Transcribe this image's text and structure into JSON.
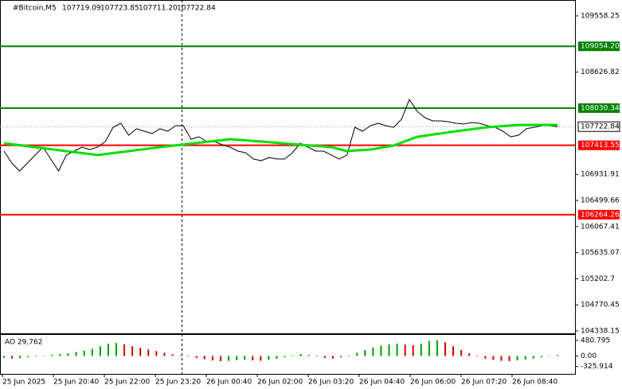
{
  "chart_data": [
    {
      "type": "line",
      "title": "#Bitcoin,M5",
      "ohlc": [
        "107719.09",
        "107723.85",
        "107711.20",
        "107722.84"
      ],
      "series": [
        {
          "color": "#000000",
          "width": 1,
          "values": [
            107317,
            107120,
            106988,
            107120,
            107252,
            107383,
            107186,
            106988,
            107252,
            107317,
            107383,
            107344,
            107383,
            107476,
            107713,
            107779,
            107581,
            107687,
            107647,
            107608,
            107687,
            107647,
            107739,
            107739,
            107515,
            107555,
            107476,
            107476,
            107423,
            107383,
            107317,
            107291,
            107186,
            107159,
            107212,
            107186,
            107186,
            107291,
            107449,
            107383,
            107317,
            107317,
            107252,
            107186,
            107252,
            107713,
            107647,
            107739,
            107779,
            107739,
            107713,
            107845,
            108174,
            107977,
            107871,
            107818,
            107818,
            107805,
            107779,
            107766,
            107792,
            107779,
            107739,
            107713,
            107647,
            107555,
            107581,
            107687,
            107713,
            107739,
            107739,
            107722.84
          ]
        },
        {
          "color": "#00e000",
          "width": 3,
          "values": [
            107449,
            107433,
            107416,
            107400,
            107383,
            107367,
            107350,
            107334,
            107317,
            107301,
            107285,
            107268,
            107252,
            107268,
            107285,
            107301,
            107317,
            107334,
            107350,
            107367,
            107383,
            107398,
            107412,
            107427,
            107442,
            107456,
            107471,
            107486,
            107500,
            107515,
            107505,
            107496,
            107486,
            107476,
            107465,
            107455,
            107444,
            107434,
            107423,
            107413,
            107403,
            107393,
            107383,
            107350,
            107317,
            107326,
            107335,
            107344,
            107366,
            107388,
            107410,
            107458,
            107507,
            107555,
            107573,
            107592,
            107610,
            107629,
            107647,
            107664,
            107680,
            107697,
            107713,
            107723,
            107732,
            107742,
            107752,
            107752,
            107752,
            107752,
            107752,
            107752
          ]
        }
      ],
      "ylim": [
        104312,
        109795
      ],
      "yticks": [
        109558.25,
        108626.82,
        106931.91,
        106499.66,
        106067.41,
        105635.07,
        105202.7,
        104770.45,
        104338.15
      ],
      "levels": [
        {
          "value": 109054.2,
          "label": "109054.20",
          "color": "#008000"
        },
        {
          "value": 108030.34,
          "label": "108030.34",
          "color": "#008000"
        },
        {
          "value": 107413.55,
          "label": "107413.55",
          "color": "#ff0000"
        },
        {
          "value": 106264.26,
          "label": "106264.26",
          "color": "#ff0000"
        }
      ],
      "current_price": 107722.84,
      "time_labels": [
        "25 Jun 2025",
        "25 Jun 20:40",
        "25 Jun 22:00",
        "25 Jun 23:20",
        "26 Jun 00:40",
        "26 Jun 02:00",
        "26 Jun 03:20",
        "26 Jun 04:40",
        "26 Jun 06:00",
        "26 Jun 07:20",
        "26 Jun 08:40"
      ]
    },
    {
      "type": "bar",
      "title": "AO 29,762",
      "up_color": "#00a000",
      "down_color": "#d00000",
      "values": [
        -60,
        -80,
        -70,
        -40,
        -20,
        10,
        40,
        60,
        80,
        120,
        160,
        220,
        300,
        380,
        400,
        360,
        300,
        250,
        200,
        150,
        100,
        50,
        20,
        -20,
        -60,
        -100,
        -140,
        -160,
        -150,
        -130,
        -120,
        -140,
        -150,
        -120,
        -90,
        -40,
        20,
        60,
        30,
        -20,
        -60,
        -80,
        -40,
        20,
        100,
        180,
        260,
        320,
        360,
        380,
        350,
        330,
        380,
        460,
        480,
        420,
        300,
        180,
        80,
        -20,
        -80,
        -120,
        -150,
        -160,
        -140,
        -110,
        -80,
        -40,
        10,
        30
      ],
      "ylim": [
        -553,
        649
      ],
      "yticks": [
        480.795,
        {
          "value": 0,
          "label": "0.00"
        },
        -325.914
      ]
    }
  ]
}
